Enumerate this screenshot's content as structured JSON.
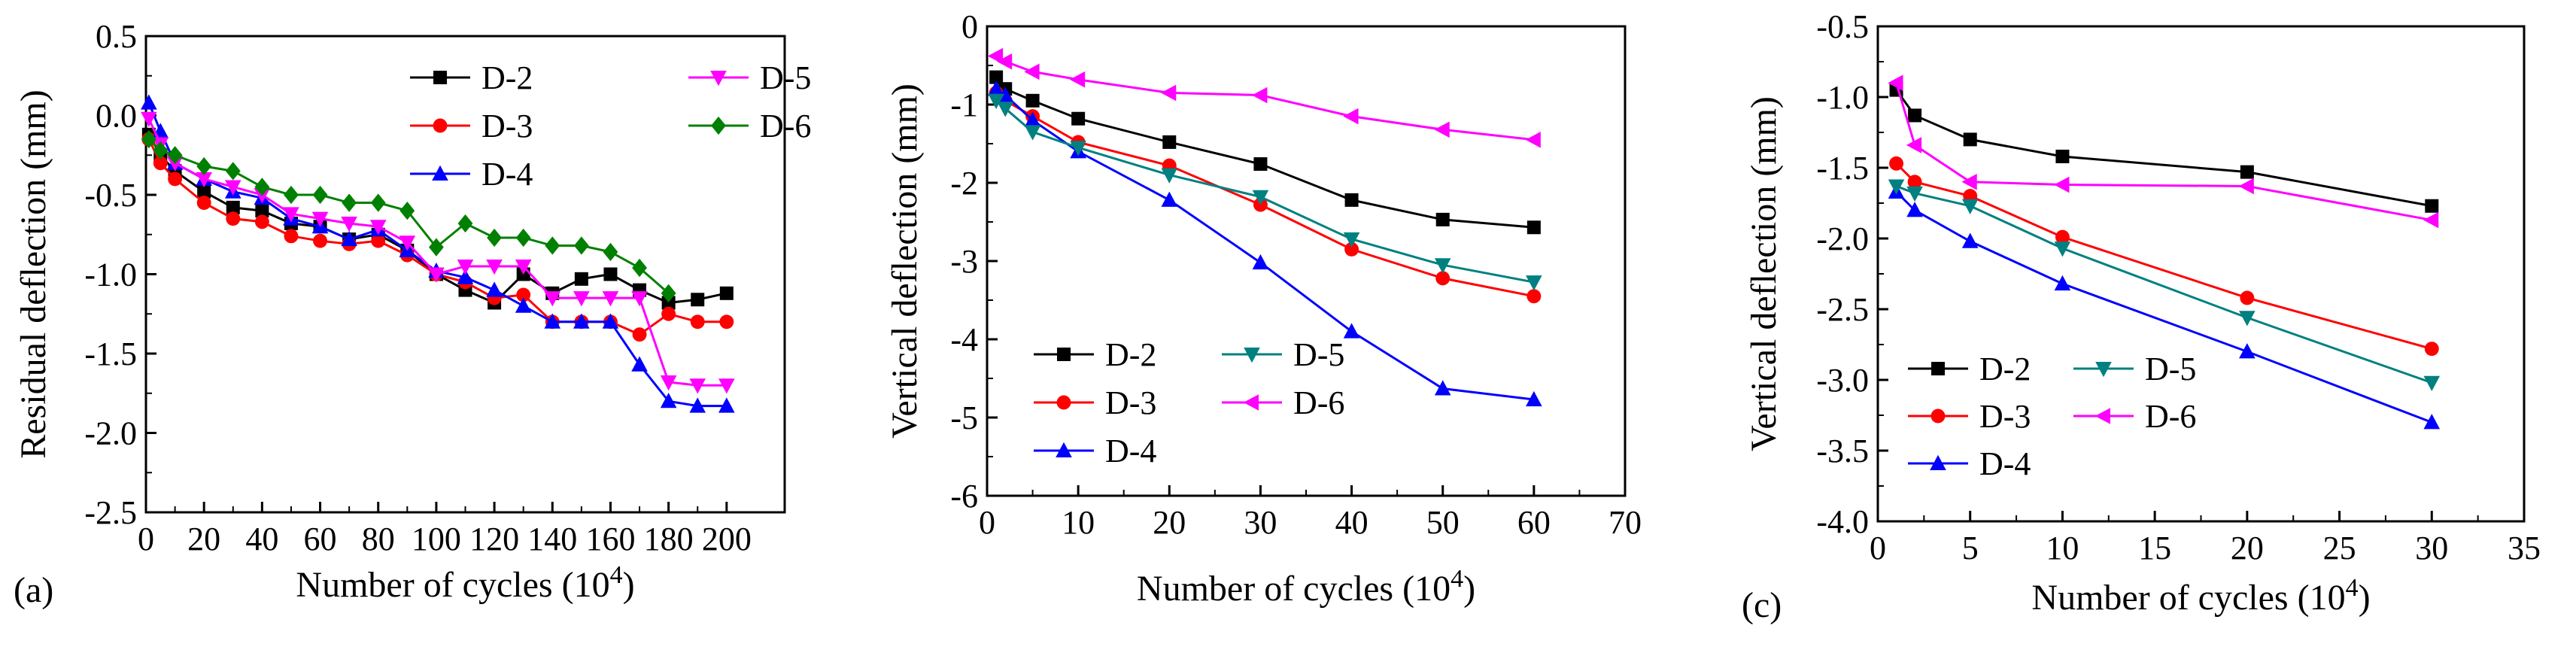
{
  "colors": {
    "D-2": "#000000",
    "D-3": "#ff0000",
    "D-4": "#0000ff",
    "D-5": "#008080",
    "D-6": "#ff00ff",
    "D-6a": "#008000"
  },
  "chart_data": [
    {
      "id": "a",
      "type": "line",
      "panel_label": "(a)",
      "xlabel": "Number of cycles (10",
      "xlabel_sup": "4",
      "xlabel_close": ")",
      "ylabel": "Residual deflection (mm)",
      "xlim": [
        0,
        220
      ],
      "ylim": [
        -2.5,
        0.5
      ],
      "xticks": [
        "0",
        "20",
        "40",
        "60",
        "80",
        "100",
        "120",
        "140",
        "160",
        "180",
        "200"
      ],
      "xtick_values": [
        0,
        20,
        40,
        60,
        80,
        100,
        120,
        140,
        160,
        180,
        200
      ],
      "yticks": [
        "0.5",
        "0.0",
        "-0.5",
        "-1.0",
        "-1.5",
        "-2.0",
        "-2.5"
      ],
      "ytick_values": [
        0.5,
        0.0,
        -0.5,
        -1.0,
        -1.5,
        -2.0,
        -2.5
      ],
      "legend_position": "top-right",
      "legend_layout": [
        [
          "D-2",
          "D-5"
        ],
        [
          "D-3",
          "D-6"
        ],
        [
          "D-4"
        ]
      ],
      "series": [
        {
          "name": "D-2",
          "color": "#000000",
          "marker": "square",
          "x": [
            1,
            5,
            10,
            20,
            30,
            40,
            50,
            60,
            70,
            80,
            90,
            100,
            110,
            120,
            130,
            140,
            150,
            160,
            170,
            180,
            190,
            200
          ],
          "y": [
            -0.12,
            -0.25,
            -0.35,
            -0.48,
            -0.58,
            -0.6,
            -0.68,
            -0.7,
            -0.78,
            -0.75,
            -0.85,
            -1.0,
            -1.1,
            -1.18,
            -1.0,
            -1.12,
            -1.03,
            -1.0,
            -1.1,
            -1.18,
            -1.16,
            -1.12
          ]
        },
        {
          "name": "D-3",
          "color": "#ff0000",
          "marker": "circle",
          "x": [
            1,
            5,
            10,
            20,
            30,
            40,
            50,
            60,
            70,
            80,
            90,
            100,
            110,
            120,
            130,
            140,
            150,
            160,
            170,
            180,
            190,
            200
          ],
          "y": [
            -0.15,
            -0.3,
            -0.4,
            -0.55,
            -0.65,
            -0.67,
            -0.76,
            -0.79,
            -0.81,
            -0.79,
            -0.88,
            -1.0,
            -1.05,
            -1.15,
            -1.13,
            -1.3,
            -1.3,
            -1.3,
            -1.38,
            -1.25,
            -1.3,
            -1.3
          ]
        },
        {
          "name": "D-4",
          "color": "#0000ff",
          "marker": "triangle-up",
          "x": [
            1,
            5,
            10,
            20,
            30,
            40,
            50,
            60,
            70,
            80,
            90,
            100,
            110,
            120,
            130,
            140,
            150,
            160,
            170,
            180,
            190,
            200
          ],
          "y": [
            0.08,
            -0.1,
            -0.3,
            -0.4,
            -0.48,
            -0.52,
            -0.65,
            -0.7,
            -0.78,
            -0.72,
            -0.85,
            -0.98,
            -1.02,
            -1.1,
            -1.2,
            -1.3,
            -1.3,
            -1.3,
            -1.57,
            -1.8,
            -1.83,
            -1.83
          ]
        },
        {
          "name": "D-5",
          "color": "#ff00ff",
          "marker": "triangle-down",
          "x": [
            1,
            5,
            10,
            20,
            30,
            40,
            50,
            60,
            70,
            80,
            90,
            100,
            110,
            120,
            130,
            140,
            150,
            160,
            170,
            180,
            190,
            200
          ],
          "y": [
            -0.02,
            -0.18,
            -0.3,
            -0.4,
            -0.45,
            -0.5,
            -0.62,
            -0.65,
            -0.68,
            -0.7,
            -0.8,
            -1.0,
            -0.95,
            -0.95,
            -0.95,
            -1.15,
            -1.15,
            -1.15,
            -1.15,
            -1.68,
            -1.7,
            -1.7
          ]
        },
        {
          "name": "D-6",
          "color": "#008000",
          "marker": "diamond",
          "x": [
            1,
            5,
            10,
            20,
            30,
            40,
            50,
            60,
            70,
            80,
            90,
            100,
            110,
            120,
            130,
            140,
            150,
            160,
            170,
            180
          ],
          "y": [
            -0.15,
            -0.22,
            -0.25,
            -0.32,
            -0.35,
            -0.45,
            -0.5,
            -0.5,
            -0.55,
            -0.55,
            -0.6,
            -0.83,
            -0.68,
            -0.77,
            -0.77,
            -0.82,
            -0.82,
            -0.86,
            -0.96,
            -1.12
          ]
        }
      ]
    },
    {
      "id": "b",
      "type": "line",
      "panel_label": "",
      "xlabel": "Number of cycles (10",
      "xlabel_sup": "4",
      "xlabel_close": ")",
      "ylabel": "Vertical deflection (mm)",
      "xlim": [
        0,
        70
      ],
      "ylim": [
        -6,
        0
      ],
      "xticks": [
        "0",
        "10",
        "20",
        "30",
        "40",
        "50",
        "60",
        "70"
      ],
      "xtick_values": [
        0,
        10,
        20,
        30,
        40,
        50,
        60,
        70
      ],
      "yticks": [
        "0",
        "-1",
        "-2",
        "-3",
        "-4",
        "-5",
        "-6"
      ],
      "ytick_values": [
        0,
        -1,
        -2,
        -3,
        -4,
        -5,
        -6
      ],
      "legend_position": "lower-left",
      "legend_layout": [
        [
          "D-2",
          "D-5"
        ],
        [
          "D-3",
          "D-6"
        ],
        [
          "D-4"
        ]
      ],
      "series": [
        {
          "name": "D-2",
          "color": "#000000",
          "marker": "square",
          "x": [
            1,
            2,
            5,
            10,
            20,
            30,
            40,
            50,
            60
          ],
          "y": [
            -0.65,
            -0.8,
            -0.95,
            -1.18,
            -1.48,
            -1.76,
            -2.22,
            -2.47,
            -2.57
          ]
        },
        {
          "name": "D-3",
          "color": "#ff0000",
          "marker": "circle",
          "x": [
            1,
            2,
            5,
            10,
            20,
            30,
            40,
            50,
            60
          ],
          "y": [
            -0.85,
            -0.95,
            -1.15,
            -1.48,
            -1.78,
            -2.28,
            -2.85,
            -3.22,
            -3.45
          ]
        },
        {
          "name": "D-4",
          "color": "#0000ff",
          "marker": "triangle-up",
          "x": [
            1,
            2,
            5,
            10,
            20,
            30,
            40,
            50,
            60
          ],
          "y": [
            -0.8,
            -0.88,
            -1.2,
            -1.6,
            -2.22,
            -3.02,
            -3.9,
            -4.63,
            -4.77
          ]
        },
        {
          "name": "D-5",
          "color": "#008080",
          "marker": "triangle-down",
          "x": [
            1,
            2,
            5,
            10,
            20,
            30,
            40,
            50,
            60
          ],
          "y": [
            -0.95,
            -1.05,
            -1.35,
            -1.55,
            -1.9,
            -2.18,
            -2.72,
            -3.05,
            -3.27
          ]
        },
        {
          "name": "D-6",
          "color": "#ff00ff",
          "marker": "triangle-left",
          "x": [
            1,
            2,
            5,
            10,
            20,
            30,
            40,
            50,
            60
          ],
          "y": [
            -0.38,
            -0.45,
            -0.58,
            -0.68,
            -0.85,
            -0.88,
            -1.15,
            -1.32,
            -1.45
          ]
        }
      ]
    },
    {
      "id": "c",
      "type": "line",
      "panel_label": "(c)",
      "xlabel": "Number of cycles (10",
      "xlabel_sup": "4",
      "xlabel_close": ")",
      "ylabel": "Vertical deflection (mm)",
      "xlim": [
        0,
        35
      ],
      "ylim": [
        -4.0,
        -0.5
      ],
      "xticks": [
        "0",
        "5",
        "10",
        "15",
        "20",
        "25",
        "30",
        "35"
      ],
      "xtick_values": [
        0,
        5,
        10,
        15,
        20,
        25,
        30,
        35
      ],
      "yticks": [
        "-0.5",
        "-1.0",
        "-1.5",
        "-2.0",
        "-2.5",
        "-3.0",
        "-3.5",
        "-4.0"
      ],
      "ytick_values": [
        -0.5,
        -1.0,
        -1.5,
        -2.0,
        -2.5,
        -3.0,
        -3.5,
        -4.0
      ],
      "legend_position": "lower-left",
      "legend_layout": [
        [
          "D-2",
          "D-5"
        ],
        [
          "D-3",
          "D-6"
        ],
        [
          "D-4"
        ]
      ],
      "series": [
        {
          "name": "D-2",
          "color": "#000000",
          "marker": "square",
          "x": [
            1,
            2,
            5,
            10,
            20,
            30
          ],
          "y": [
            -0.95,
            -1.13,
            -1.3,
            -1.42,
            -1.53,
            -1.77
          ]
        },
        {
          "name": "D-3",
          "color": "#ff0000",
          "marker": "circle",
          "x": [
            1,
            2,
            5,
            10,
            20,
            30
          ],
          "y": [
            -1.47,
            -1.6,
            -1.7,
            -1.99,
            -2.42,
            -2.78
          ]
        },
        {
          "name": "D-4",
          "color": "#0000ff",
          "marker": "triangle-up",
          "x": [
            1,
            2,
            5,
            10,
            20,
            30
          ],
          "y": [
            -1.67,
            -1.8,
            -2.02,
            -2.32,
            -2.8,
            -3.3
          ]
        },
        {
          "name": "D-5",
          "color": "#008080",
          "marker": "triangle-down",
          "x": [
            1,
            2,
            5,
            10,
            20,
            30
          ],
          "y": [
            -1.63,
            -1.68,
            -1.77,
            -2.07,
            -2.56,
            -3.02
          ]
        },
        {
          "name": "D-6",
          "color": "#ff00ff",
          "marker": "triangle-left",
          "x": [
            1,
            2,
            5,
            10,
            20,
            30
          ],
          "y": [
            -0.9,
            -1.34,
            -1.6,
            -1.62,
            -1.63,
            -1.87
          ]
        }
      ]
    }
  ]
}
